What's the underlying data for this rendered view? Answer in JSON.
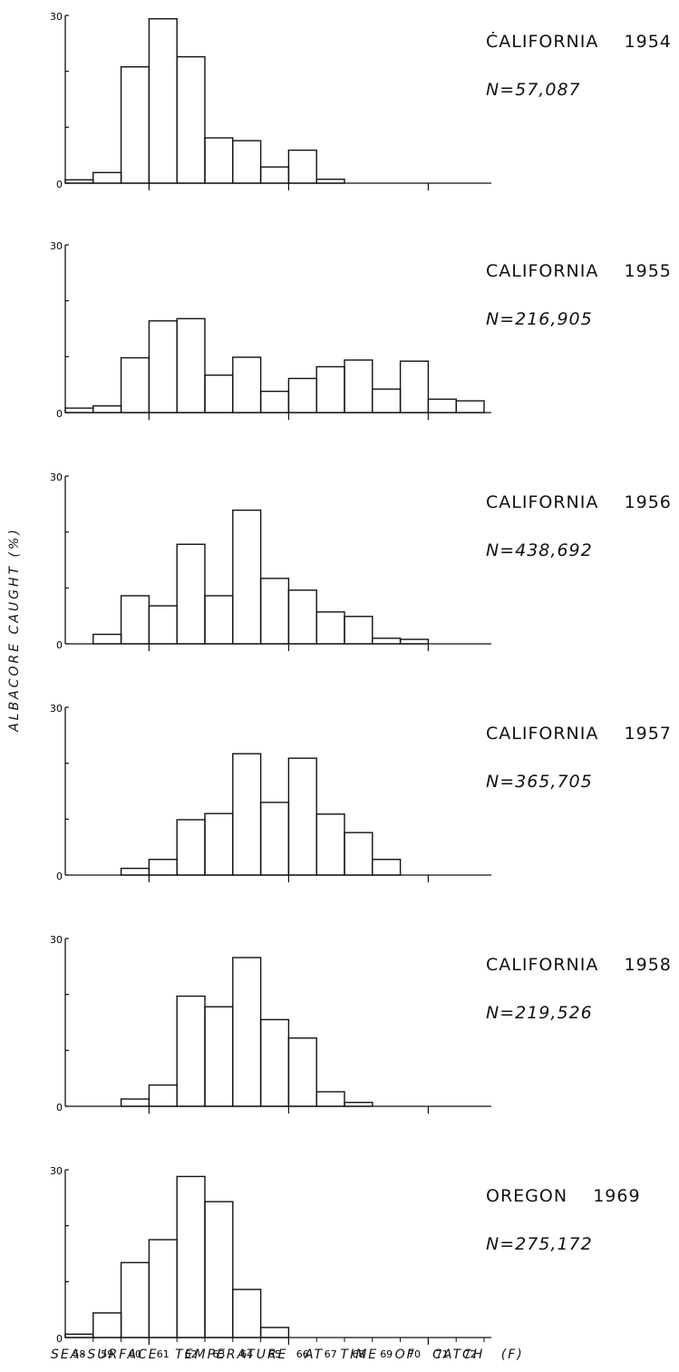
{
  "chart_data": {
    "type": "bar",
    "ylabel": "ALBACORE CAUGHT (%)",
    "xlabel": "SEA-SURFACE TEMPERATURE AT TIME OF CATCH (F)",
    "x_tick_labels": [
      "58",
      "59",
      "60",
      "61",
      "62",
      "63",
      "64",
      "65",
      "66",
      "67",
      "68",
      "69",
      "70",
      "71",
      "72"
    ],
    "bin_edges": [
      57.5,
      72.5
    ],
    "ylim": [
      0,
      30
    ],
    "y_tick_labels": [
      "0",
      "30"
    ],
    "grid": false,
    "panels": [
      {
        "title": "ĊALIFORNIA    1954",
        "n_label": "N=57,087",
        "values": [
          0.6,
          1.9,
          20.8,
          29.4,
          22.6,
          8.1,
          7.6,
          2.9,
          5.9,
          0.7,
          0,
          0,
          0,
          0,
          0
        ]
      },
      {
        "title": "CALIFORNIA    1955",
        "n_label": "N=216,905",
        "values": [
          0.8,
          1.2,
          9.8,
          16.4,
          16.8,
          6.7,
          9.9,
          3.8,
          6.1,
          8.2,
          9.4,
          4.2,
          9.2,
          2.4,
          2.1
        ]
      },
      {
        "title": "CALIFORNIA    1956",
        "n_label": "N=438,692",
        "values": [
          0,
          1.7,
          8.6,
          6.8,
          17.8,
          8.6,
          23.9,
          11.7,
          9.6,
          5.7,
          4.9,
          1.0,
          0.8,
          0,
          0
        ]
      },
      {
        "title": "CALIFORNIA    1957",
        "n_label": "N=365,705",
        "values": [
          0,
          0,
          1.2,
          2.8,
          9.9,
          11.0,
          21.7,
          13.0,
          20.9,
          10.9,
          7.6,
          2.8,
          0,
          0,
          0
        ]
      },
      {
        "title": "CALIFORNIA    1958",
        "n_label": "N=219,526",
        "values": [
          0,
          0,
          1.3,
          3.8,
          19.7,
          17.8,
          26.6,
          15.5,
          12.2,
          2.6,
          0.7,
          0,
          0,
          0,
          0
        ]
      },
      {
        "title": "OREGON    1969",
        "n_label": "N=275,172",
        "values": [
          0.6,
          4.4,
          13.4,
          17.5,
          28.8,
          24.3,
          8.6,
          1.8,
          0,
          0,
          0,
          0,
          0,
          0,
          0
        ]
      }
    ]
  }
}
